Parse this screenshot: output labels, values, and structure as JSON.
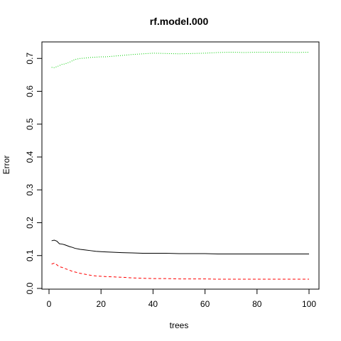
{
  "chart_data": {
    "type": "line",
    "title": "rf.model.000",
    "xlabel": "trees",
    "ylabel": "Error",
    "xlim": [
      0,
      100
    ],
    "ylim": [
      0,
      0.72
    ],
    "grid": false,
    "x_ticks": [
      "0",
      "20",
      "40",
      "60",
      "80",
      "100"
    ],
    "y_ticks": [
      "0.0",
      "0.1",
      "0.2",
      "0.3",
      "0.4",
      "0.5",
      "0.6",
      "0.7"
    ],
    "series": [
      {
        "color": "#000000",
        "style": "solid",
        "x": [
          1,
          2,
          3,
          4,
          5,
          6,
          7,
          8,
          9,
          10,
          12,
          14,
          16,
          18,
          20,
          22,
          25,
          28,
          32,
          36,
          40,
          45,
          50,
          55,
          60,
          65,
          70,
          75,
          80,
          85,
          90,
          95,
          100
        ],
        "values": [
          0.145,
          0.147,
          0.144,
          0.136,
          0.135,
          0.133,
          0.13,
          0.127,
          0.125,
          0.122,
          0.119,
          0.117,
          0.115,
          0.113,
          0.112,
          0.111,
          0.11,
          0.109,
          0.108,
          0.107,
          0.107,
          0.107,
          0.106,
          0.106,
          0.106,
          0.105,
          0.105,
          0.105,
          0.105,
          0.105,
          0.105,
          0.105,
          0.105
        ]
      },
      {
        "color": "#ff0000",
        "style": "dashed",
        "x": [
          1,
          2,
          3,
          4,
          5,
          6,
          7,
          8,
          9,
          10,
          12,
          14,
          16,
          18,
          20,
          22,
          25,
          28,
          32,
          36,
          40,
          45,
          50,
          55,
          60,
          65,
          70,
          75,
          80,
          85,
          90,
          95,
          100
        ],
        "values": [
          0.074,
          0.077,
          0.072,
          0.066,
          0.064,
          0.061,
          0.058,
          0.055,
          0.052,
          0.05,
          0.046,
          0.043,
          0.04,
          0.038,
          0.037,
          0.036,
          0.035,
          0.034,
          0.032,
          0.031,
          0.03,
          0.03,
          0.029,
          0.029,
          0.029,
          0.028,
          0.028,
          0.028,
          0.028,
          0.028,
          0.028,
          0.028,
          0.028
        ]
      },
      {
        "color": "#00cd00",
        "style": "dotted",
        "x": [
          1,
          2,
          3,
          4,
          5,
          6,
          7,
          8,
          9,
          10,
          12,
          14,
          16,
          18,
          20,
          22,
          25,
          28,
          32,
          36,
          40,
          45,
          50,
          55,
          60,
          65,
          70,
          75,
          80,
          85,
          90,
          95,
          100
        ],
        "values": [
          0.673,
          0.672,
          0.675,
          0.678,
          0.682,
          0.683,
          0.686,
          0.689,
          0.693,
          0.697,
          0.7,
          0.701,
          0.703,
          0.704,
          0.705,
          0.705,
          0.707,
          0.709,
          0.712,
          0.714,
          0.716,
          0.715,
          0.714,
          0.715,
          0.716,
          0.718,
          0.719,
          0.718,
          0.719,
          0.719,
          0.719,
          0.718,
          0.719
        ]
      }
    ]
  }
}
